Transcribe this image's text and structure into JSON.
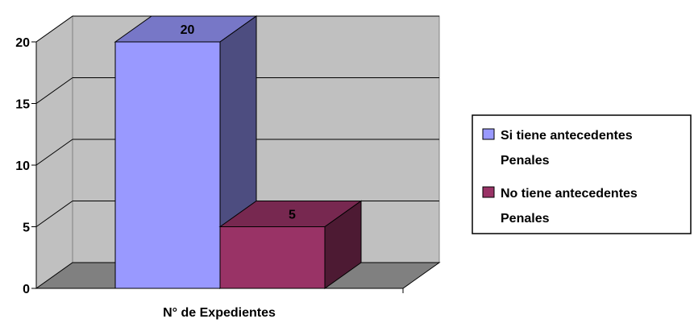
{
  "chart_data": {
    "type": "bar",
    "categories": [
      "N° de Expedientes"
    ],
    "series": [
      {
        "name": "Si tiene antecedentes Penales",
        "values": [
          20
        ],
        "color": "#9999FF"
      },
      {
        "name": "No tiene antecedentes Penales",
        "values": [
          5
        ],
        "color": "#993366"
      }
    ],
    "data_labels": [
      "20",
      "5"
    ],
    "xlabel": "N° de Expedientes",
    "ylabel": "",
    "ylim": [
      0,
      20
    ],
    "y_ticks": [
      "0",
      "5",
      "10",
      "15",
      "20"
    ],
    "grid": true,
    "legend": {
      "position": "right",
      "entries": [
        {
          "line1": "Si tiene antecedentes",
          "line2": "Penales",
          "color": "#9999FF"
        },
        {
          "line1": "No tiene antecedentes",
          "line2": "Penales",
          "color": "#993366"
        }
      ]
    },
    "style": "3d-column",
    "wall_color": "#C0C0C0",
    "floor_color": "#808080"
  }
}
